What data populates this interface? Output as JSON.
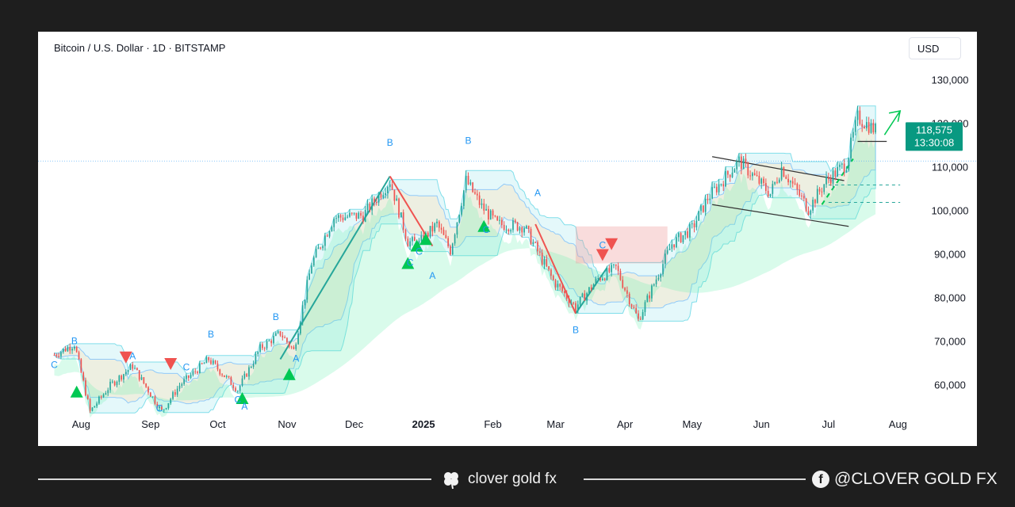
{
  "chart_data": {
    "type": "candlestick",
    "title": "Bitcoin / U.S. Dollar · 1D · BITSTAMP",
    "currency": "USD",
    "y_ticks": [
      60000,
      70000,
      80000,
      90000,
      100000,
      110000,
      120000,
      130000
    ],
    "y_tick_labels": [
      "60,000",
      "70,000",
      "80,000",
      "90,000",
      "100,000",
      "110,000",
      "120,000",
      "130,000"
    ],
    "ylim": [
      53000,
      133000
    ],
    "x_labels": [
      "Aug",
      "Sep",
      "Oct",
      "Nov",
      "Dec",
      "2025",
      "Feb",
      "Mar",
      "Apr",
      "May",
      "Jun",
      "Jul",
      "Aug"
    ],
    "current_price": "118,575",
    "countdown": "13:30:08",
    "approx_close_path": [
      [
        "2024-07-20",
        67000
      ],
      [
        "2024-07-29",
        69500
      ],
      [
        "2024-08-05",
        54000
      ],
      [
        "2024-08-14",
        60000
      ],
      [
        "2024-08-24",
        64500
      ],
      [
        "2024-09-06",
        54000
      ],
      [
        "2024-09-14",
        60000
      ],
      [
        "2024-09-27",
        66000
      ],
      [
        "2024-10-10",
        59000
      ],
      [
        "2024-10-20",
        68500
      ],
      [
        "2024-10-29",
        72000
      ],
      [
        "2024-11-04",
        68000
      ],
      [
        "2024-11-12",
        88000
      ],
      [
        "2024-11-22",
        98500
      ],
      [
        "2024-12-05",
        99000
      ],
      [
        "2024-12-17",
        107000
      ],
      [
        "2024-12-25",
        93000
      ],
      [
        "2024-12-30",
        92500
      ],
      [
        "2025-01-07",
        97000
      ],
      [
        "2025-01-13",
        91000
      ],
      [
        "2025-01-20",
        107000
      ],
      [
        "2025-01-27",
        101000
      ],
      [
        "2025-02-03",
        97000
      ],
      [
        "2025-02-15",
        96500
      ],
      [
        "2025-02-28",
        84000
      ],
      [
        "2025-03-10",
        78000
      ],
      [
        "2025-03-20",
        84500
      ],
      [
        "2025-03-28",
        87000
      ],
      [
        "2025-04-07",
        75000
      ],
      [
        "2025-04-15",
        84500
      ],
      [
        "2025-04-22",
        92500
      ],
      [
        "2025-05-01",
        96000
      ],
      [
        "2025-05-08",
        103000
      ],
      [
        "2025-05-22",
        111500
      ],
      [
        "2025-06-05",
        104000
      ],
      [
        "2025-06-10",
        110000
      ],
      [
        "2025-06-22",
        100500
      ],
      [
        "2025-06-30",
        107000
      ],
      [
        "2025-07-09",
        111000
      ],
      [
        "2025-07-14",
        121500
      ],
      [
        "2025-07-22",
        118575
      ]
    ],
    "wave_labels": [
      {
        "text": "B",
        "date": "2024-07-29",
        "price": 69500
      },
      {
        "text": "C",
        "date": "2024-07-20",
        "price": 64000
      },
      {
        "text": "A",
        "date": "2024-08-24",
        "price": 66000
      },
      {
        "text": "C",
        "date": "2024-09-05",
        "price": 54000
      },
      {
        "text": "C",
        "date": "2024-09-17",
        "price": 63500
      },
      {
        "text": "B",
        "date": "2024-09-28",
        "price": 71000
      },
      {
        "text": "C",
        "date": "2024-10-10",
        "price": 56000
      },
      {
        "text": "A",
        "date": "2024-10-13",
        "price": 54500
      },
      {
        "text": "B",
        "date": "2024-10-27",
        "price": 75000
      },
      {
        "text": "A",
        "date": "2024-11-05",
        "price": 65500
      },
      {
        "text": "B",
        "date": "2024-12-17",
        "price": 115000
      },
      {
        "text": "C",
        "date": "2024-12-26",
        "price": 87500
      },
      {
        "text": "C",
        "date": "2024-12-30",
        "price": 90000
      },
      {
        "text": "A",
        "date": "2025-01-05",
        "price": 84500
      },
      {
        "text": "B",
        "date": "2025-01-21",
        "price": 115500
      },
      {
        "text": "C",
        "date": "2025-01-29",
        "price": 95000
      },
      {
        "text": "A",
        "date": "2025-02-21",
        "price": 103500
      },
      {
        "text": "B",
        "date": "2025-03-10",
        "price": 72000
      },
      {
        "text": "C",
        "date": "2025-03-22",
        "price": 91500
      }
    ],
    "annotations": [
      "descending channel May–Jun 2025",
      "projected breakout arrow toward ~123,000"
    ],
    "grid": false,
    "price_axis": "right"
  },
  "footer": {
    "brand": "clover gold fx",
    "handle": "@CLOVER GOLD FX"
  }
}
